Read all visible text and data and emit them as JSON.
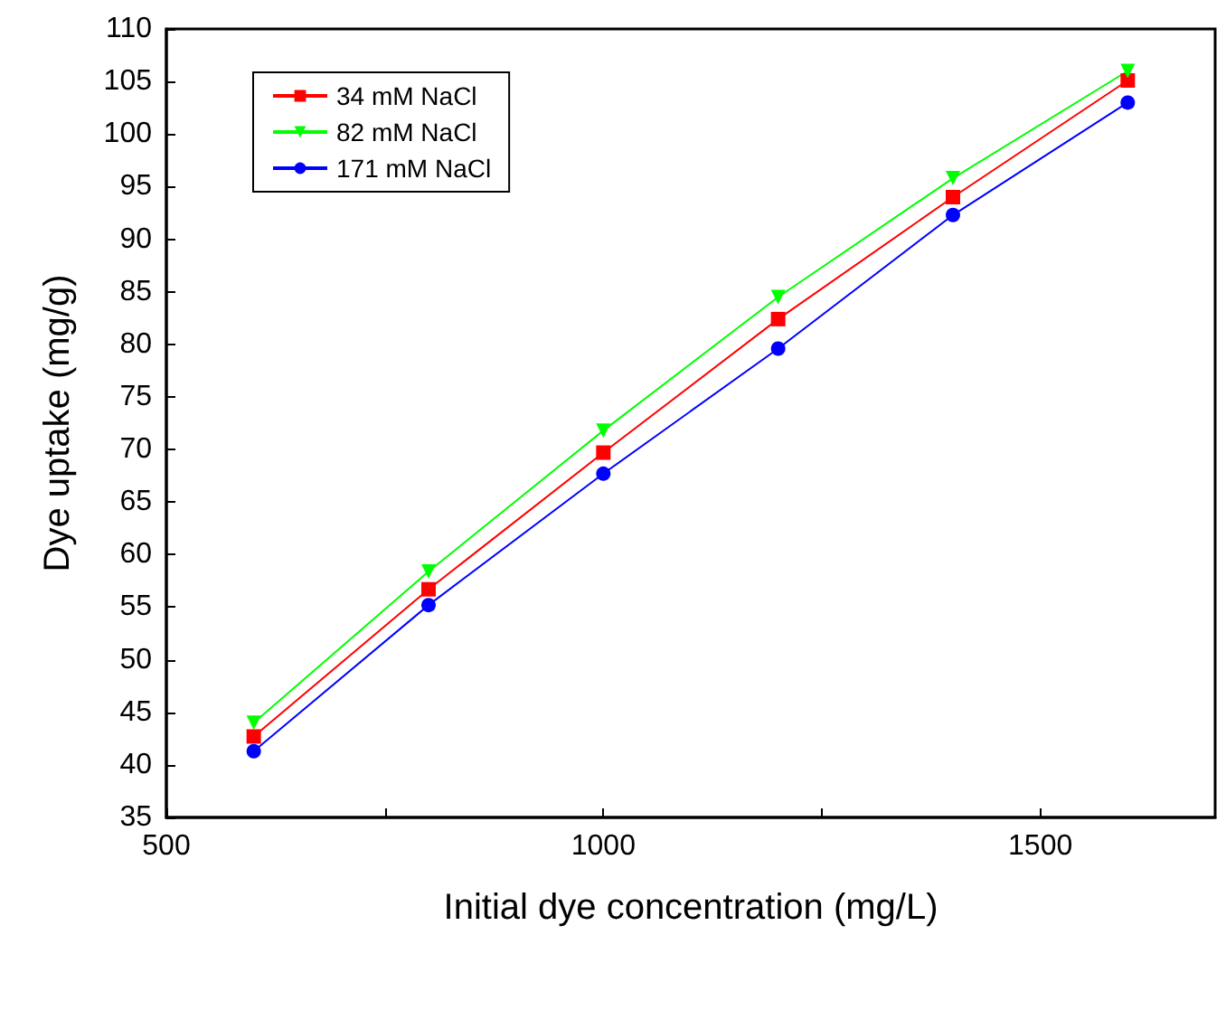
{
  "chart_data": {
    "type": "line",
    "xlabel": "Initial dye concentration (mg/L)",
    "ylabel": "Dye uptake (mg/g)",
    "x": [
      600,
      800,
      1000,
      1200,
      1400,
      1600
    ],
    "series": [
      {
        "name": "34 mM NaCl",
        "color": "#ff0000",
        "marker": "square",
        "values": [
          42.7,
          56.7,
          69.7,
          82.4,
          94.0,
          105.1
        ]
      },
      {
        "name": "82 mM NaCl",
        "color": "#00ff00",
        "marker": "triangle",
        "values": [
          44.0,
          58.4,
          71.8,
          84.5,
          95.8,
          106.0
        ]
      },
      {
        "name": "171 mM NaCl",
        "color": "#0000ff",
        "marker": "circle",
        "values": [
          41.3,
          55.2,
          67.7,
          79.6,
          92.3,
          103.0
        ]
      }
    ],
    "xlim": [
      500,
      1700
    ],
    "xticks": [
      500,
      {
        "value": 750,
        "label": null
      },
      1000,
      {
        "value": 1250,
        "label": null
      },
      1500
    ],
    "ylim": [
      35,
      110
    ],
    "yticks": [
      35,
      40,
      45,
      50,
      55,
      60,
      65,
      70,
      75,
      80,
      85,
      90,
      95,
      100,
      105,
      110
    ],
    "grid": false,
    "legend": "top left",
    "line_style": "solid"
  }
}
